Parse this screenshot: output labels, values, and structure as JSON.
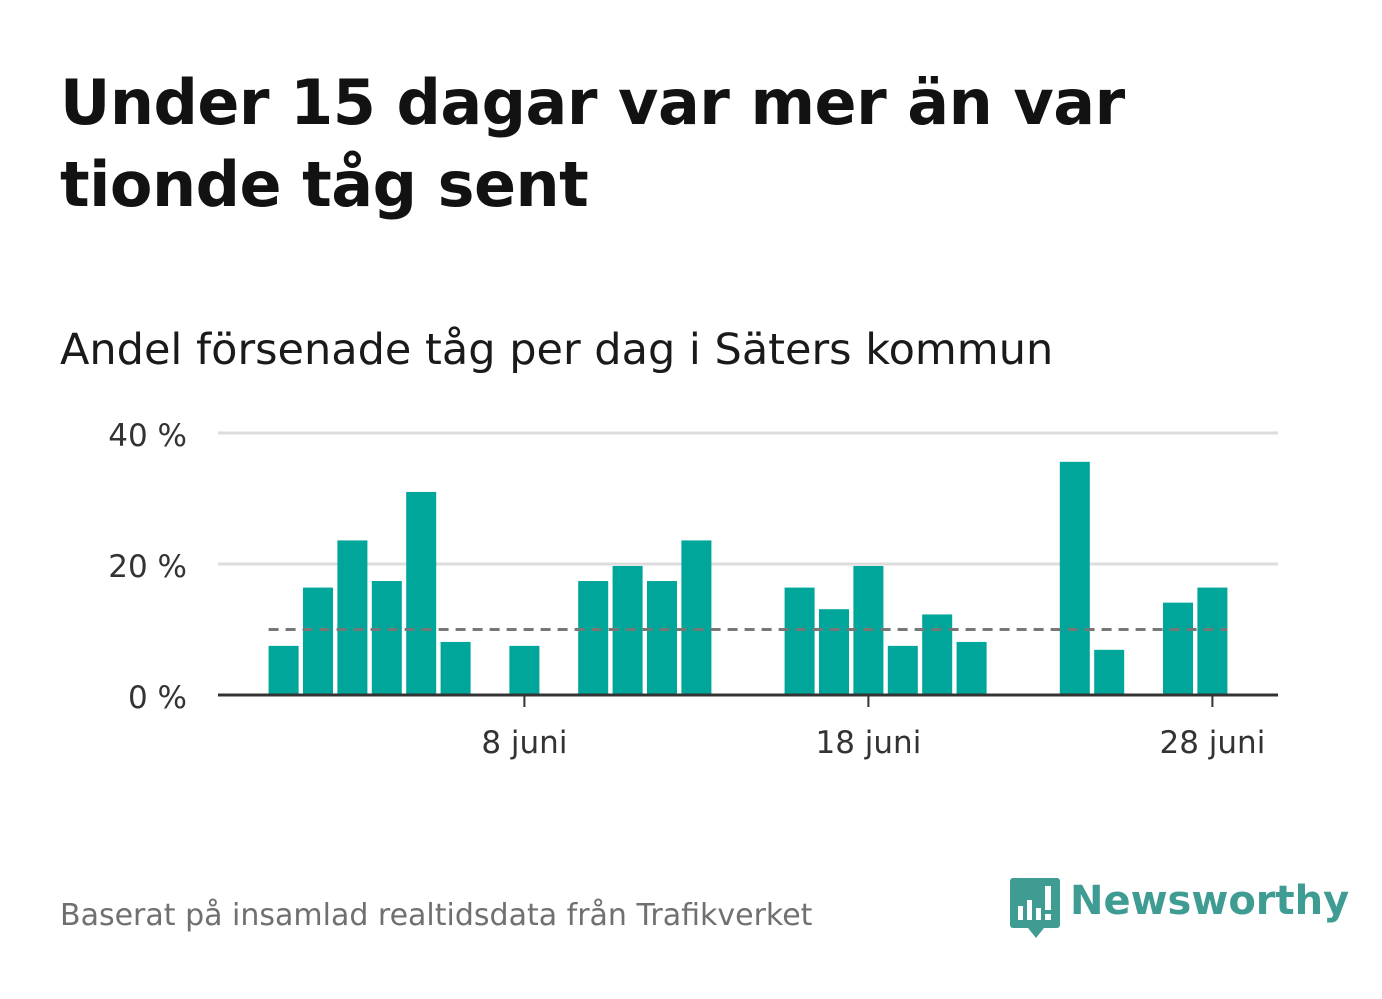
{
  "title": "Under 15 dagar var mer än var tionde tåg sent",
  "subtitle": "Andel försenade tåg per dag i Säters kommun",
  "footer": "Baserat på insamlad realtidsdata från Trafikverket",
  "brand": {
    "name": "Newsworthy",
    "color": "#3f9c93"
  },
  "colors": {
    "bar": "#00a69a",
    "grid": "#dddddd",
    "axis": "#333333",
    "reference": "#777777"
  },
  "chart_data": {
    "type": "bar",
    "x": [
      "2019-06-01",
      "2019-06-02",
      "2019-06-03",
      "2019-06-04",
      "2019-06-05",
      "2019-06-06",
      "2019-06-07",
      "2019-06-08",
      "2019-06-09",
      "2019-06-10",
      "2019-06-11",
      "2019-06-12",
      "2019-06-13",
      "2019-06-14",
      "2019-06-15",
      "2019-06-16",
      "2019-06-17",
      "2019-06-18",
      "2019-06-19",
      "2019-06-20",
      "2019-06-21",
      "2019-06-22",
      "2019-06-23",
      "2019-06-24",
      "2019-06-25",
      "2019-06-26",
      "2019-06-27",
      "2019-06-28"
    ],
    "values": [
      7.5,
      16.4,
      23.6,
      17.4,
      31.0,
      8.1,
      null,
      7.5,
      null,
      17.4,
      19.7,
      17.4,
      23.6,
      null,
      null,
      16.4,
      13.1,
      19.7,
      7.5,
      12.3,
      8.1,
      null,
      null,
      35.6,
      6.9,
      null,
      14.1,
      16.4
    ],
    "reference_line": 10,
    "ylim": [
      0,
      40
    ],
    "yticks": [
      0,
      20,
      40
    ],
    "ytick_labels": [
      "0 %",
      "20 %",
      "40 %"
    ],
    "xticks": [
      "2019-06-08",
      "2019-06-18",
      "2019-06-28"
    ],
    "xtick_labels": [
      "8 juni",
      "18 juni",
      "28 juni"
    ],
    "xlabel": "",
    "ylabel": "",
    "grid": true,
    "legend": "none"
  }
}
